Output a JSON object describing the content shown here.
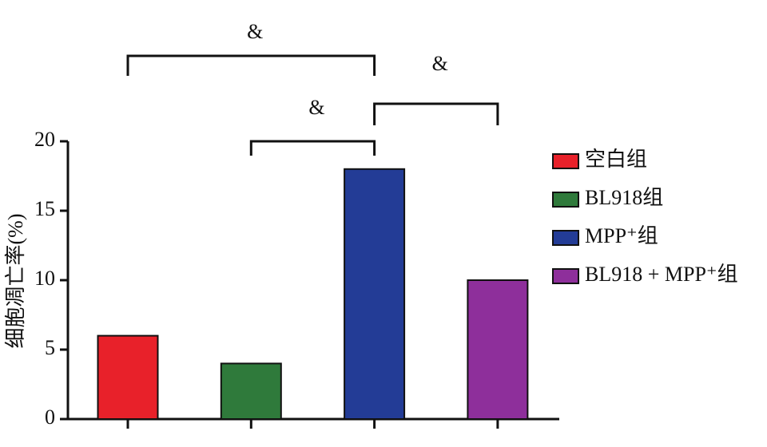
{
  "chart_data": {
    "type": "bar",
    "y_label": "细胞凋亡率(%)",
    "categories": [
      "空白组",
      "BL918组",
      "MPP⁺组",
      "BL918 + MPP⁺组"
    ],
    "values": [
      6,
      4,
      18,
      10
    ],
    "colors": [
      "#e8212a",
      "#2f7a3b",
      "#233c96",
      "#8e2f9b"
    ],
    "ylim": [
      0,
      20
    ],
    "yticks": [
      0,
      5,
      10,
      15,
      20
    ],
    "annotations": [
      {
        "label": "&",
        "groups": [
          0,
          2
        ]
      },
      {
        "label": "&",
        "groups": [
          2,
          3
        ]
      },
      {
        "label": "&",
        "groups": [
          1,
          2
        ]
      }
    ]
  }
}
